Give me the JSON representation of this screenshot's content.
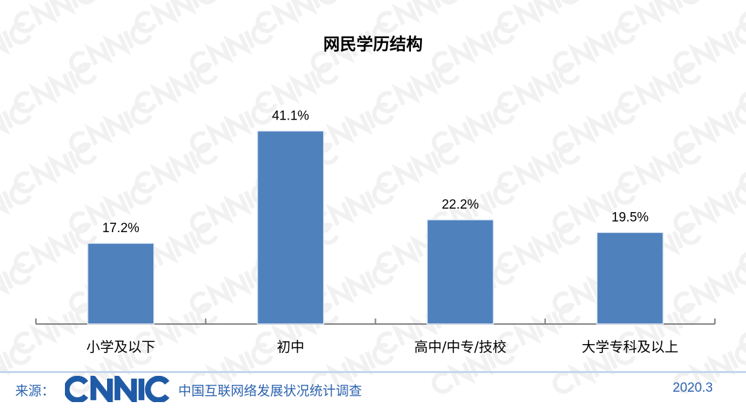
{
  "chart_data": {
    "type": "bar",
    "title": "网民学历结构",
    "categories": [
      "小学及以下",
      "初中",
      "高中/中专/技校",
      "大学专科及以上"
    ],
    "values": [
      17.2,
      41.1,
      22.2,
      19.5
    ],
    "data_labels": [
      "17.2%",
      "41.1%",
      "22.2%",
      "19.5%"
    ],
    "xlabel": "",
    "ylabel": "",
    "ylim": [
      0,
      45
    ],
    "grid": false,
    "bar_color": "#4f81bd"
  },
  "footer": {
    "source_label": "来源：",
    "logo_text": "CNNIC",
    "org_name": "中国互联网络发展状况统计调查",
    "date": "2020.3"
  },
  "watermark": "CNNIC"
}
